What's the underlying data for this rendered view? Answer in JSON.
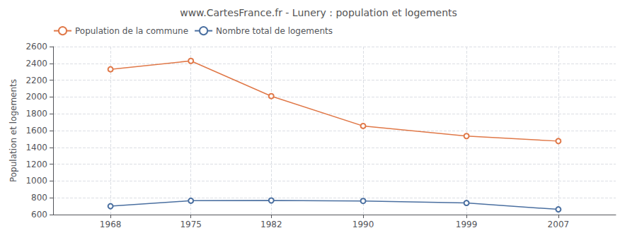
{
  "chart_data": {
    "type": "line",
    "title": "www.CartesFrance.fr - Lunery : population et logements",
    "ylabel": "Population et logements",
    "x": [
      1968,
      1975,
      1982,
      1990,
      1999,
      2007
    ],
    "series": [
      {
        "name": "Population de la commune",
        "color": "#e07848",
        "marker": "circle",
        "values": [
          2330,
          2430,
          2010,
          1655,
          1535,
          1475
        ]
      },
      {
        "name": "Nombre total de logements",
        "color": "#4a6fa0",
        "marker": "circle",
        "values": [
          700,
          765,
          768,
          762,
          738,
          662
        ]
      }
    ],
    "xlim": [
      1963,
      2012
    ],
    "xticks": [
      1968,
      1975,
      1982,
      1990,
      1999,
      2007
    ],
    "ylim": [
      600,
      2600
    ],
    "yticks": [
      600,
      800,
      1000,
      1200,
      1400,
      1600,
      1800,
      2000,
      2200,
      2400,
      2600
    ],
    "grid": true,
    "legend": "upper left"
  }
}
